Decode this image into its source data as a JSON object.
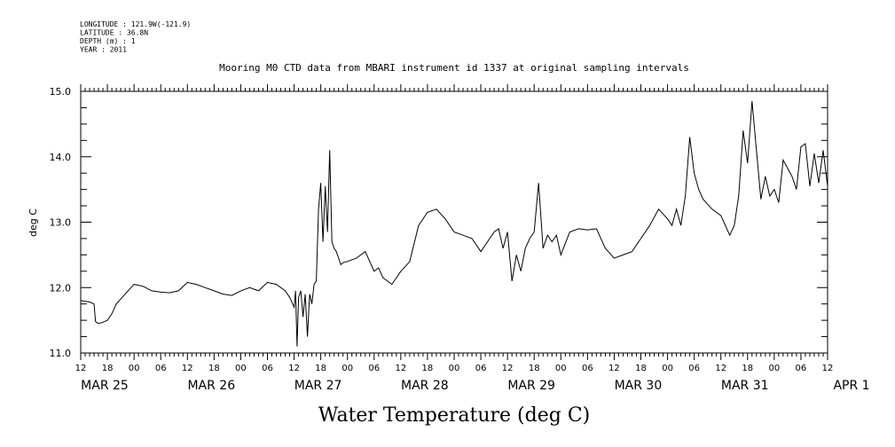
{
  "header": {
    "lines": [
      "LONGITUDE : 121.9W(-121.9)",
      "LATITUDE : 36.8N",
      "DEPTH (m) : 1",
      "YEAR : 2011"
    ]
  },
  "chart_data": {
    "type": "line",
    "title": "Mooring M0 CTD data from MBARI instrument id 1337 at original sampling intervals",
    "ylabel": "deg C",
    "xlabel": "Water Temperature (deg C)",
    "ylim": [
      11.0,
      15.0
    ],
    "yticks": [
      "11.0",
      "12.0",
      "13.0",
      "14.0",
      "15.0"
    ],
    "xlim": [
      "2011-03-25T12:00",
      "2011-04-01T12:00"
    ],
    "hour_ticks": [
      "12",
      "18",
      "00",
      "06",
      "12",
      "18",
      "00",
      "06",
      "12",
      "18",
      "00",
      "06",
      "12",
      "18",
      "00",
      "06",
      "12",
      "18",
      "00",
      "06",
      "12",
      "18",
      "00",
      "06",
      "12",
      "18",
      "00",
      "06",
      "12"
    ],
    "day_labels": [
      {
        "label": "MAR 25",
        "at": "2011-03-25T12:00"
      },
      {
        "label": "MAR 26",
        "at": "2011-03-26T12:00"
      },
      {
        "label": "MAR 27",
        "at": "2011-03-27T12:00"
      },
      {
        "label": "MAR 28",
        "at": "2011-03-28T12:00"
      },
      {
        "label": "MAR 29",
        "at": "2011-03-29T12:00"
      },
      {
        "label": "MAR 30",
        "at": "2011-03-30T12:00"
      },
      {
        "label": "MAR 31",
        "at": "2011-03-31T12:00"
      },
      {
        "label": "APR  1",
        "at": "2011-04-01T12:00"
      }
    ],
    "series": [
      {
        "x": [
          "2011-03-25T12:00",
          "2011-03-25T14:00",
          "2011-03-25T15:00",
          "2011-03-25T15:20",
          "2011-03-25T16:00",
          "2011-03-25T17:00",
          "2011-03-25T18:00",
          "2011-03-25T19:00",
          "2011-03-25T20:00",
          "2011-03-25T22:00",
          "2011-03-26T00:00",
          "2011-03-26T02:00",
          "2011-03-26T04:00",
          "2011-03-26T06:00",
          "2011-03-26T08:00",
          "2011-03-26T10:00",
          "2011-03-26T12:00",
          "2011-03-26T14:00",
          "2011-03-26T16:00",
          "2011-03-26T18:00",
          "2011-03-26T20:00",
          "2011-03-26T22:00",
          "2011-03-27T00:00",
          "2011-03-27T02:00",
          "2011-03-27T04:00",
          "2011-03-27T06:00",
          "2011-03-27T08:00",
          "2011-03-27T10:00",
          "2011-03-27T11:00",
          "2011-03-27T12:00",
          "2011-03-27T12:20",
          "2011-03-27T12:40",
          "2011-03-27T13:00",
          "2011-03-27T13:30",
          "2011-03-27T14:00",
          "2011-03-27T14:30",
          "2011-03-27T15:00",
          "2011-03-27T15:30",
          "2011-03-27T16:00",
          "2011-03-27T16:30",
          "2011-03-27T17:00",
          "2011-03-27T17:30",
          "2011-03-27T18:00",
          "2011-03-27T18:30",
          "2011-03-27T19:00",
          "2011-03-27T19:30",
          "2011-03-27T20:00",
          "2011-03-27T20:30",
          "2011-03-27T21:00",
          "2011-03-27T21:30",
          "2011-03-27T22:00",
          "2011-03-27T22:30",
          "2011-03-27T23:00",
          "2011-03-28T00:00",
          "2011-03-28T02:00",
          "2011-03-28T04:00",
          "2011-03-28T06:00",
          "2011-03-28T07:00",
          "2011-03-28T08:00",
          "2011-03-28T10:00",
          "2011-03-28T12:00",
          "2011-03-28T13:00",
          "2011-03-28T14:00",
          "2011-03-28T16:00",
          "2011-03-28T18:00",
          "2011-03-28T20:00",
          "2011-03-28T22:00",
          "2011-03-29T00:00",
          "2011-03-29T02:00",
          "2011-03-29T04:00",
          "2011-03-29T06:00",
          "2011-03-29T08:00",
          "2011-03-29T09:00",
          "2011-03-29T10:00",
          "2011-03-29T11:00",
          "2011-03-29T12:00",
          "2011-03-29T13:00",
          "2011-03-29T14:00",
          "2011-03-29T15:00",
          "2011-03-29T16:00",
          "2011-03-29T17:00",
          "2011-03-29T18:00",
          "2011-03-29T19:00",
          "2011-03-29T20:00",
          "2011-03-29T21:00",
          "2011-03-29T22:00",
          "2011-03-29T23:00",
          "2011-03-30T00:00",
          "2011-03-30T02:00",
          "2011-03-30T04:00",
          "2011-03-30T06:00",
          "2011-03-30T08:00",
          "2011-03-30T10:00",
          "2011-03-30T12:00",
          "2011-03-30T14:00",
          "2011-03-30T16:00",
          "2011-03-30T18:00",
          "2011-03-30T20:00",
          "2011-03-30T22:00",
          "2011-03-31T00:00",
          "2011-03-31T01:00",
          "2011-03-31T02:00",
          "2011-03-31T03:00",
          "2011-03-31T04:00",
          "2011-03-31T05:00",
          "2011-03-31T06:00",
          "2011-03-31T07:00",
          "2011-03-31T08:00",
          "2011-03-31T10:00",
          "2011-03-31T12:00",
          "2011-03-31T14:00",
          "2011-03-31T15:00",
          "2011-03-31T16:00",
          "2011-03-31T17:00",
          "2011-03-31T18:00",
          "2011-03-31T19:00",
          "2011-03-31T20:00",
          "2011-03-31T21:00",
          "2011-03-31T22:00",
          "2011-03-31T23:00",
          "2011-04-01T00:00",
          "2011-04-01T01:00",
          "2011-04-01T02:00",
          "2011-04-01T04:00",
          "2011-04-01T05:00",
          "2011-04-01T06:00",
          "2011-04-01T07:00",
          "2011-04-01T08:00",
          "2011-04-01T09:00",
          "2011-04-01T10:00",
          "2011-04-01T11:00",
          "2011-04-01T12:00"
        ],
        "y": [
          11.8,
          11.78,
          11.75,
          11.48,
          11.45,
          11.47,
          11.5,
          11.6,
          11.75,
          11.9,
          12.05,
          12.02,
          11.95,
          11.93,
          11.92,
          11.95,
          12.08,
          12.05,
          12.0,
          11.95,
          11.9,
          11.88,
          11.95,
          12.0,
          11.95,
          12.08,
          12.05,
          11.95,
          11.85,
          11.7,
          11.95,
          11.1,
          11.85,
          11.95,
          11.55,
          11.9,
          11.25,
          11.9,
          11.75,
          12.05,
          12.1,
          13.2,
          13.6,
          12.7,
          13.55,
          12.85,
          14.1,
          12.7,
          12.6,
          12.55,
          12.45,
          12.35,
          12.38,
          12.4,
          12.45,
          12.55,
          12.25,
          12.3,
          12.15,
          12.05,
          12.25,
          12.32,
          12.4,
          12.95,
          13.15,
          13.2,
          13.05,
          12.85,
          12.8,
          12.75,
          12.55,
          12.75,
          12.85,
          12.9,
          12.6,
          12.85,
          12.1,
          12.5,
          12.25,
          12.6,
          12.75,
          12.85,
          13.6,
          12.6,
          12.8,
          12.7,
          12.8,
          12.5,
          12.85,
          12.9,
          12.88,
          12.9,
          12.6,
          12.45,
          12.5,
          12.55,
          12.75,
          12.95,
          13.2,
          13.05,
          12.95,
          13.2,
          12.95,
          13.4,
          14.3,
          13.75,
          13.5,
          13.35,
          13.2,
          13.1,
          12.8,
          12.95,
          13.4,
          14.4,
          13.9,
          14.85,
          14.1,
          13.35,
          13.7,
          13.4,
          13.5,
          13.3,
          13.95,
          13.7,
          13.5,
          14.15,
          14.2,
          13.55,
          14.05,
          13.6,
          14.1,
          13.55
        ]
      }
    ]
  }
}
